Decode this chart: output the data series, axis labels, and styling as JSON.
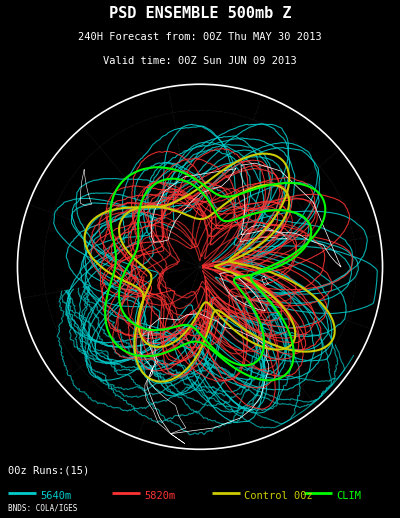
{
  "title_line1": "PSD ENSEMBLE 500mb Z",
  "title_line2": "240H Forecast from: 00Z Thu MAY 30 2013",
  "title_line3": "Valid time: 00Z Sun JUN 09 2013",
  "footer_left": "00z Runs:(15)",
  "footer_credit": "BNDS: COLA/IGES",
  "legend": [
    {
      "label": "5640m",
      "color": "#00CCCC"
    },
    {
      "label": "5820m",
      "color": "#FF3333"
    },
    {
      "label": "Control 00z",
      "color": "#CCCC00"
    },
    {
      "label": "CLIM",
      "color": "#00FF00"
    }
  ],
  "background_color": "#000000",
  "title_color": "#FFFFFF",
  "color_5640": "#00CCCC",
  "color_5820": "#FF3333",
  "color_control": "#CCCC00",
  "color_clim": "#00FF00",
  "color_land": "#FFFFFF",
  "color_border": "#FFFFFF",
  "color_grid": "#555555",
  "font_size_title": 11,
  "font_size_sub": 7.5,
  "font_size_legend": 7.5,
  "font_size_footer": 5.5
}
